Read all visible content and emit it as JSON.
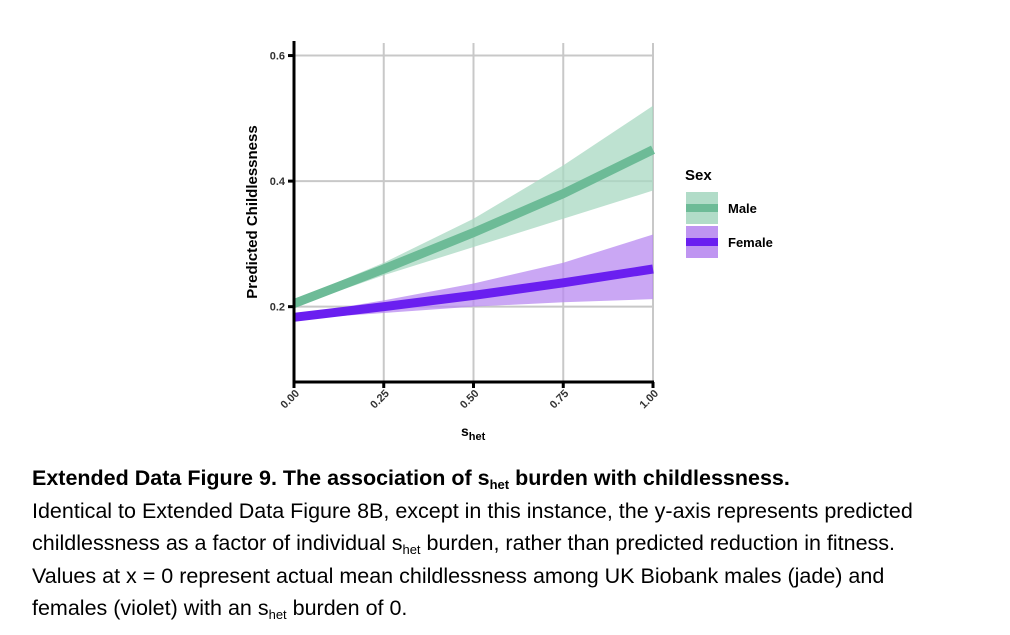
{
  "chart_data": {
    "type": "line",
    "x": [
      0,
      0.25,
      0.5,
      0.75,
      1.0
    ],
    "series": [
      {
        "name": "Male",
        "color": "#6dbb97",
        "band_color": "#a8d8c2",
        "values": [
          0.205,
          0.26,
          0.318,
          0.38,
          0.45
        ],
        "lower": [
          0.2,
          0.25,
          0.295,
          0.34,
          0.385
        ],
        "upper": [
          0.21,
          0.27,
          0.34,
          0.425,
          0.52
        ]
      },
      {
        "name": "Female",
        "color": "#6a1ff0",
        "band_color": "#b88af0",
        "values": [
          0.183,
          0.2,
          0.218,
          0.238,
          0.26
        ],
        "lower": [
          0.18,
          0.19,
          0.2,
          0.207,
          0.212
        ],
        "upper": [
          0.186,
          0.21,
          0.237,
          0.27,
          0.315
        ]
      }
    ],
    "ylabel": "Predicted Childlessness",
    "xlabel_main": "s",
    "xlabel_sub": "het",
    "xlim": [
      0,
      1
    ],
    "ylim": [
      0.08,
      0.62
    ],
    "yticks": [
      0.2,
      0.4,
      0.6
    ],
    "ytick_labels": [
      "0.2",
      "0.4",
      "0.6"
    ],
    "xticks": [
      0,
      0.25,
      0.5,
      0.75,
      1.0
    ],
    "xtick_labels": [
      "0.00",
      "0.25",
      "0.50",
      "0.75",
      "1.00"
    ],
    "legend_title": "Sex",
    "grid": true,
    "legend_position": "right"
  },
  "caption": {
    "title_pre": "Extended Data Figure 9. The association of s",
    "title_sub": "het",
    "title_post": " burden with childlessness.",
    "line1": "Identical to Extended Data Figure 8B, except in this instance, the y-axis represents predicted",
    "line2_pre": "childlessness as a factor of individual s",
    "line2_sub": "het",
    "line2_post": " burden, rather than predicted reduction in fitness.",
    "line3": "Values at x = 0 represent actual mean childlessness among UK Biobank males (jade) and",
    "line4_pre": "females (violet) with an s",
    "line4_sub": "het",
    "line4_post": " burden of 0."
  }
}
